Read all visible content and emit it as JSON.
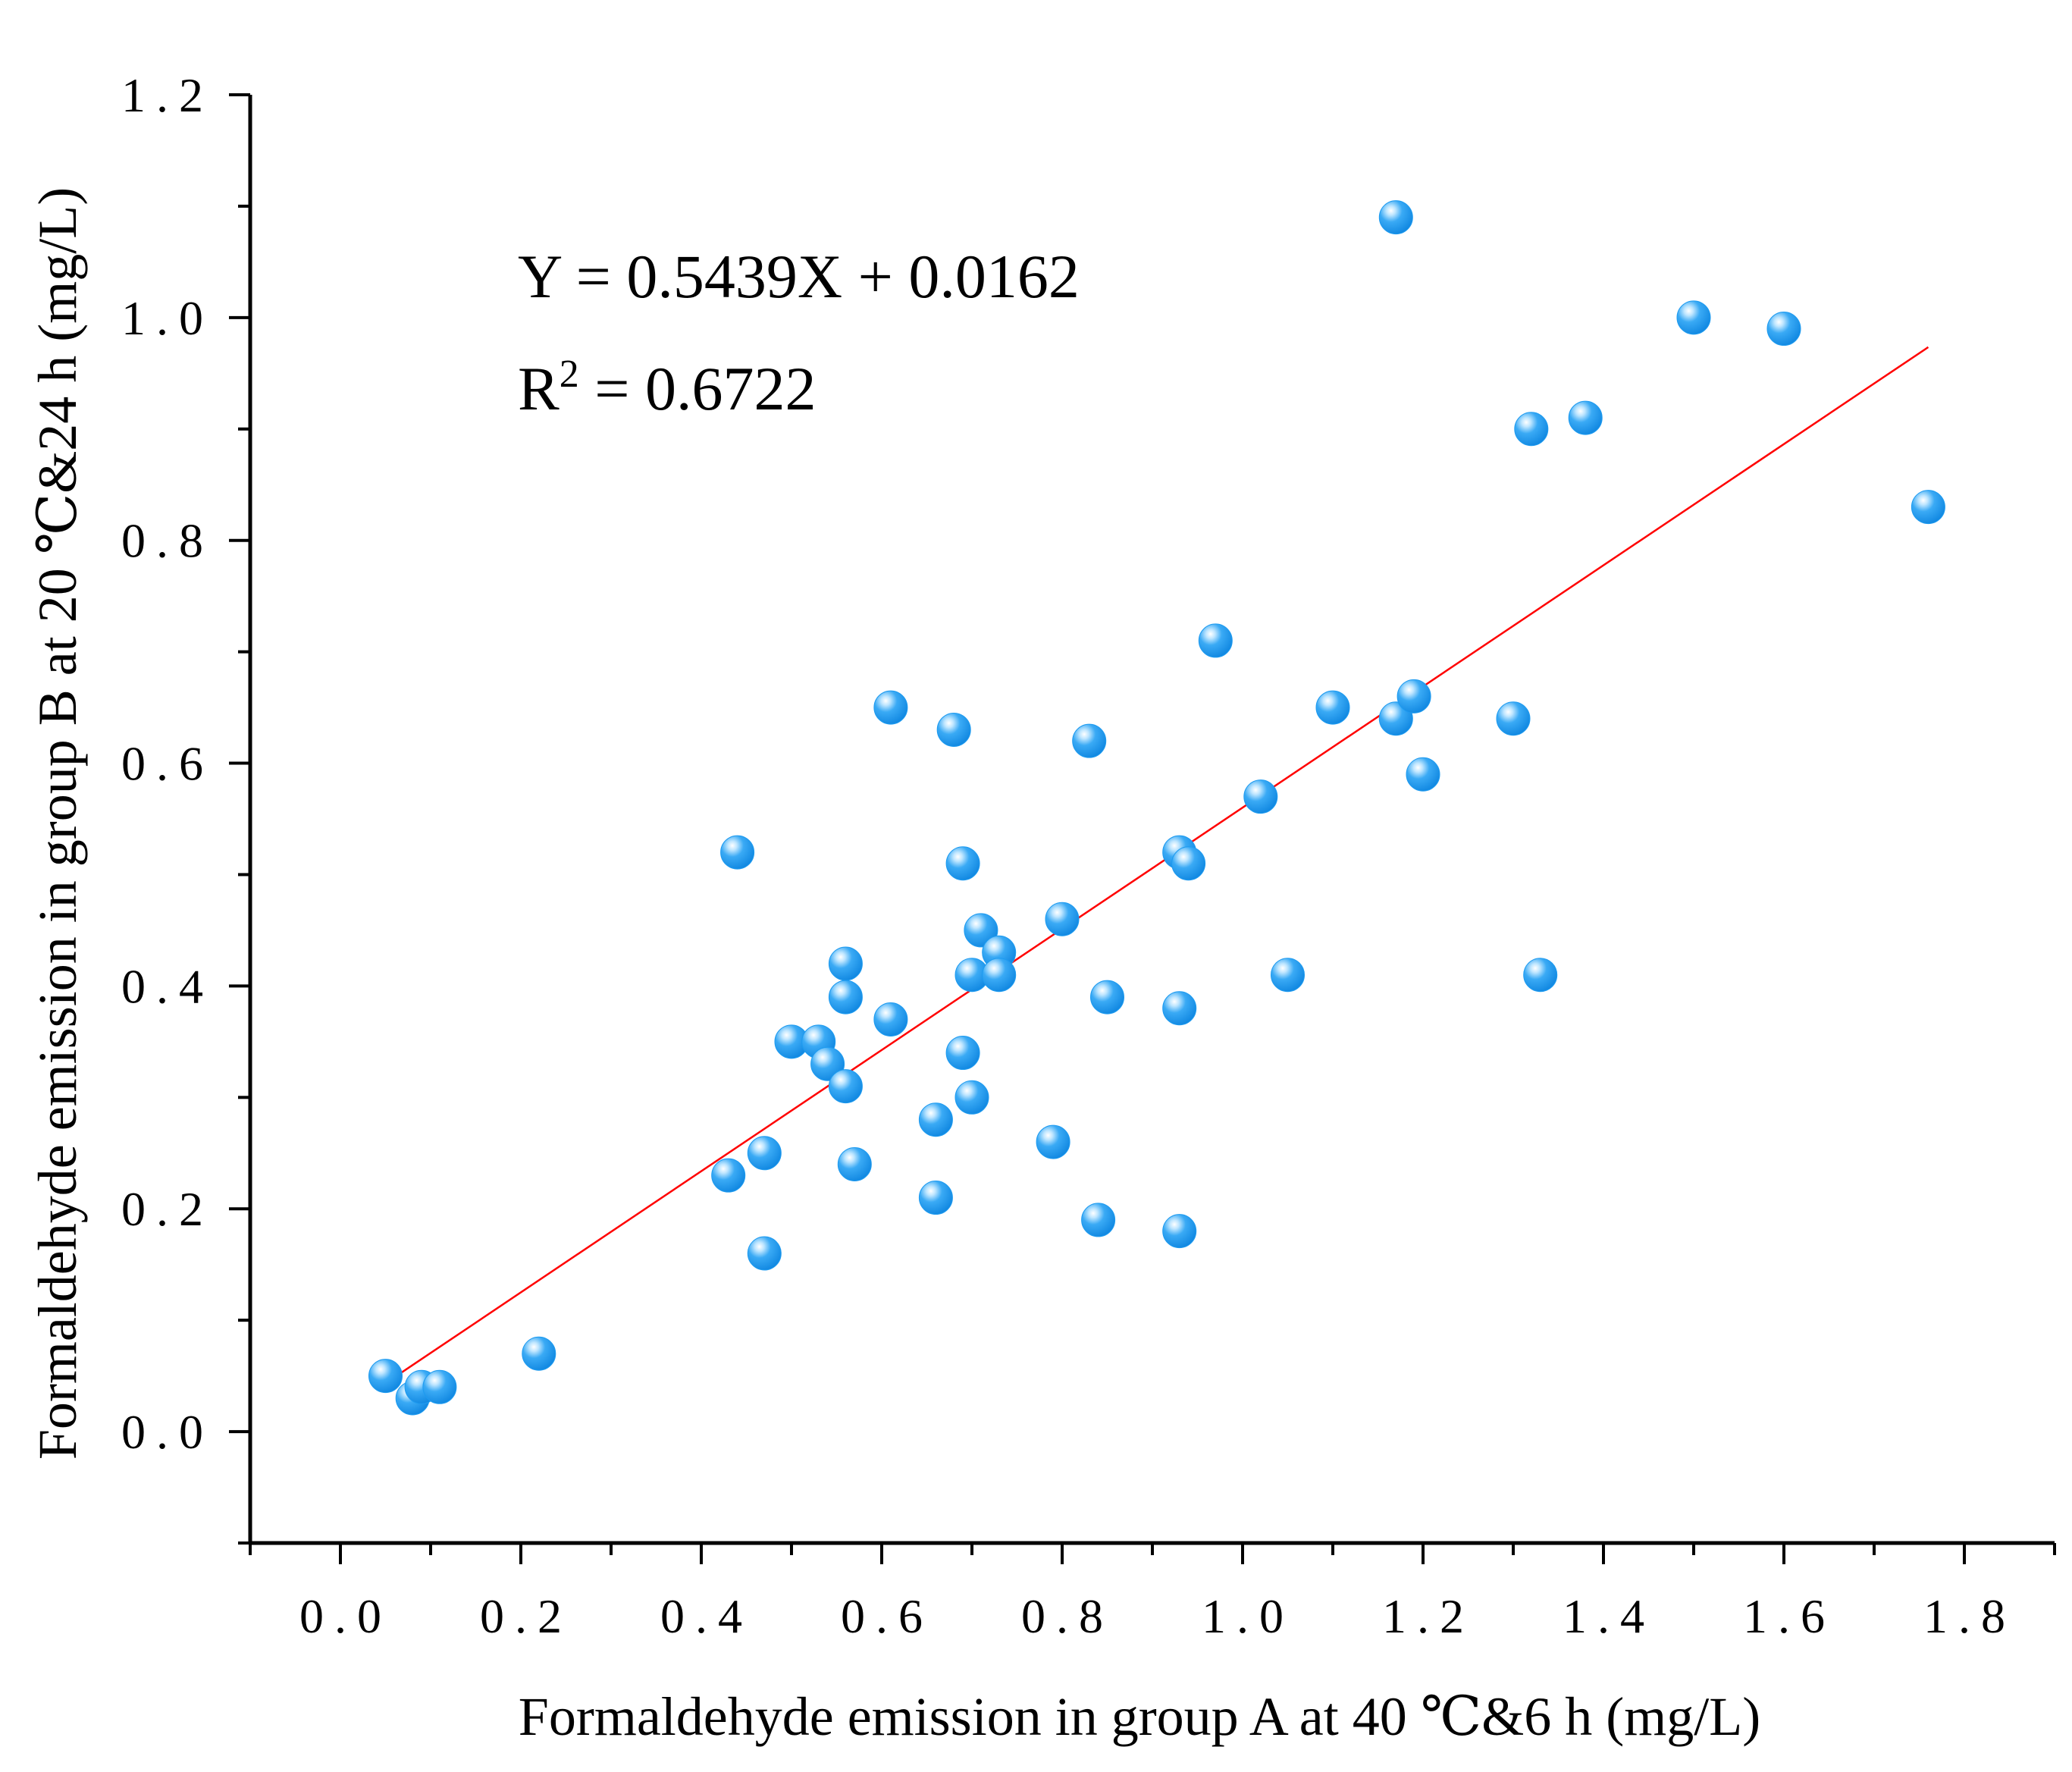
{
  "chart_data": {
    "type": "scatter",
    "xlabel": "Formaldehyde emission in group A at 40 ℃&6 h (mg/L)",
    "ylabel": "Formaldehyde emission in group B at 20 ℃&24 h (mg/L)",
    "xlim": [
      -0.1,
      1.9
    ],
    "ylim": [
      -0.1,
      1.2
    ],
    "x_ticks": [
      "0.0",
      "0.2",
      "0.4",
      "0.6",
      "0.8",
      "1.0",
      "1.2",
      "1.4",
      "1.6",
      "1.8"
    ],
    "y_ticks": [
      "0.0",
      "0.2",
      "0.4",
      "0.6",
      "0.8",
      "1.0",
      "1.2"
    ],
    "x_tick_values": [
      0.0,
      0.2,
      0.4,
      0.6,
      0.8,
      1.0,
      1.2,
      1.4,
      1.6,
      1.8
    ],
    "y_tick_values": [
      0.0,
      0.2,
      0.4,
      0.6,
      0.8,
      1.0,
      1.2
    ],
    "grid": false,
    "marker_color": "#1e9bf0",
    "fit_line_color": "#ff0000",
    "annotation": {
      "equation": "Y = 0.5439X + 0.0162",
      "r2_prefix": "R",
      "r2_sup": "2",
      "r2_value": " = 0.6722"
    },
    "fit": {
      "slope": 0.5439,
      "intercept": 0.0162,
      "x_start": 0.05,
      "x_end": 1.76
    },
    "points": [
      {
        "x": 0.05,
        "y": 0.05
      },
      {
        "x": 0.08,
        "y": 0.03
      },
      {
        "x": 0.09,
        "y": 0.04
      },
      {
        "x": 0.11,
        "y": 0.04
      },
      {
        "x": 0.22,
        "y": 0.07
      },
      {
        "x": 0.43,
        "y": 0.23
      },
      {
        "x": 0.44,
        "y": 0.52
      },
      {
        "x": 0.47,
        "y": 0.25
      },
      {
        "x": 0.47,
        "y": 0.16
      },
      {
        "x": 0.5,
        "y": 0.35
      },
      {
        "x": 0.53,
        "y": 0.35
      },
      {
        "x": 0.54,
        "y": 0.33
      },
      {
        "x": 0.56,
        "y": 0.42
      },
      {
        "x": 0.56,
        "y": 0.39
      },
      {
        "x": 0.56,
        "y": 0.31
      },
      {
        "x": 0.57,
        "y": 0.24
      },
      {
        "x": 0.61,
        "y": 0.65
      },
      {
        "x": 0.61,
        "y": 0.37
      },
      {
        "x": 0.66,
        "y": 0.28
      },
      {
        "x": 0.66,
        "y": 0.21
      },
      {
        "x": 0.68,
        "y": 0.63
      },
      {
        "x": 0.69,
        "y": 0.51
      },
      {
        "x": 0.69,
        "y": 0.34
      },
      {
        "x": 0.7,
        "y": 0.41
      },
      {
        "x": 0.7,
        "y": 0.3
      },
      {
        "x": 0.71,
        "y": 0.45
      },
      {
        "x": 0.73,
        "y": 0.43
      },
      {
        "x": 0.73,
        "y": 0.41
      },
      {
        "x": 0.79,
        "y": 0.26
      },
      {
        "x": 0.8,
        "y": 0.46
      },
      {
        "x": 0.83,
        "y": 0.62
      },
      {
        "x": 0.84,
        "y": 0.19
      },
      {
        "x": 0.85,
        "y": 0.39
      },
      {
        "x": 0.93,
        "y": 0.52
      },
      {
        "x": 0.93,
        "y": 0.38
      },
      {
        "x": 0.93,
        "y": 0.18
      },
      {
        "x": 0.94,
        "y": 0.51
      },
      {
        "x": 0.97,
        "y": 0.71
      },
      {
        "x": 1.02,
        "y": 0.57
      },
      {
        "x": 1.05,
        "y": 0.41
      },
      {
        "x": 1.1,
        "y": 0.65
      },
      {
        "x": 1.17,
        "y": 1.09
      },
      {
        "x": 1.17,
        "y": 0.64
      },
      {
        "x": 1.19,
        "y": 0.66
      },
      {
        "x": 1.2,
        "y": 0.59
      },
      {
        "x": 1.3,
        "y": 0.64
      },
      {
        "x": 1.32,
        "y": 0.9
      },
      {
        "x": 1.33,
        "y": 0.41
      },
      {
        "x": 1.38,
        "y": 0.91
      },
      {
        "x": 1.5,
        "y": 1.0
      },
      {
        "x": 1.6,
        "y": 0.99
      },
      {
        "x": 1.76,
        "y": 0.83
      }
    ]
  }
}
